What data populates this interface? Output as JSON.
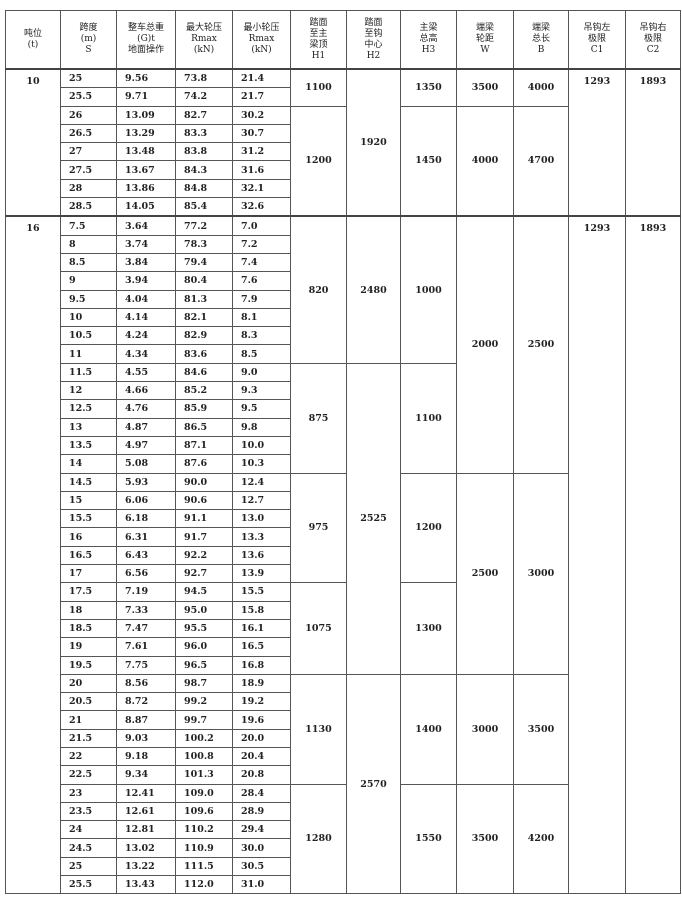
{
  "headers": [
    "吨位\n(t)",
    "跨度\n(m)\nS",
    "整车总重\n(G)t\n地面操作",
    "最大轮压\nRmax\n(kN)",
    "最小轮压\nRmax\n(kN)",
    "踏面\n至主\n梁顶\nH1",
    "踏面\n至钩\n中心\nH2",
    "主梁\n总高\nH3",
    "端梁\n轮距\nW",
    "端梁\n总长\nB",
    "吊钩左\n极限\nC1",
    "吊钩右\n极限\nC2"
  ],
  "groups": [
    {
      "tonnage": "10",
      "c1": "1293",
      "c2": "1893",
      "rows": [
        [
          "25",
          "9.56",
          "73.8",
          "21.4"
        ],
        [
          "25.5",
          "9.71",
          "74.2",
          "21.7"
        ],
        [
          "26",
          "13.09",
          "82.7",
          "30.2"
        ],
        [
          "26.5",
          "13.29",
          "83.3",
          "30.7"
        ],
        [
          "27",
          "13.48",
          "83.8",
          "31.2"
        ],
        [
          "27.5",
          "13.67",
          "84.3",
          "31.6"
        ],
        [
          "28",
          "13.86",
          "84.8",
          "32.1"
        ],
        [
          "28.5",
          "14.05",
          "85.4",
          "32.6"
        ]
      ],
      "h1": [
        {
          "value": "1100",
          "span": 2
        },
        {
          "value": "1200",
          "span": 6
        }
      ],
      "h2": [
        {
          "value": "1920",
          "span": 8
        }
      ],
      "h3": [
        {
          "value": "1350",
          "span": 2
        },
        {
          "value": "1450",
          "span": 6
        }
      ],
      "w": [
        {
          "value": "3500",
          "span": 2
        },
        {
          "value": "4000",
          "span": 6
        }
      ],
      "b": [
        {
          "value": "4000",
          "span": 2
        },
        {
          "value": "4700",
          "span": 6
        }
      ]
    },
    {
      "tonnage": "16",
      "c1": "1293",
      "c2": "1893",
      "rows": [
        [
          "7.5",
          "3.64",
          "77.2",
          "7.0"
        ],
        [
          "8",
          "3.74",
          "78.3",
          "7.2"
        ],
        [
          "8.5",
          "3.84",
          "79.4",
          "7.4"
        ],
        [
          "9",
          "3.94",
          "80.4",
          "7.6"
        ],
        [
          "9.5",
          "4.04",
          "81.3",
          "7.9"
        ],
        [
          "10",
          "4.14",
          "82.1",
          "8.1"
        ],
        [
          "10.5",
          "4.24",
          "82.9",
          "8.3"
        ],
        [
          "11",
          "4.34",
          "83.6",
          "8.5"
        ],
        [
          "11.5",
          "4.55",
          "84.6",
          "9.0"
        ],
        [
          "12",
          "4.66",
          "85.2",
          "9.3"
        ],
        [
          "12.5",
          "4.76",
          "85.9",
          "9.5"
        ],
        [
          "13",
          "4.87",
          "86.5",
          "9.8"
        ],
        [
          "13.5",
          "4.97",
          "87.1",
          "10.0"
        ],
        [
          "14",
          "5.08",
          "87.6",
          "10.3"
        ],
        [
          "14.5",
          "5.93",
          "90.0",
          "12.4"
        ],
        [
          "15",
          "6.06",
          "90.6",
          "12.7"
        ],
        [
          "15.5",
          "6.18",
          "91.1",
          "13.0"
        ],
        [
          "16",
          "6.31",
          "91.7",
          "13.3"
        ],
        [
          "16.5",
          "6.43",
          "92.2",
          "13.6"
        ],
        [
          "17",
          "6.56",
          "92.7",
          "13.9"
        ],
        [
          "17.5",
          "7.19",
          "94.5",
          "15.5"
        ],
        [
          "18",
          "7.33",
          "95.0",
          "15.8"
        ],
        [
          "18.5",
          "7.47",
          "95.5",
          "16.1"
        ],
        [
          "19",
          "7.61",
          "96.0",
          "16.5"
        ],
        [
          "19.5",
          "7.75",
          "96.5",
          "16.8"
        ],
        [
          "20",
          "8.56",
          "98.7",
          "18.9"
        ],
        [
          "20.5",
          "8.72",
          "99.2",
          "19.2"
        ],
        [
          "21",
          "8.87",
          "99.7",
          "19.6"
        ],
        [
          "21.5",
          "9.03",
          "100.2",
          "20.0"
        ],
        [
          "22",
          "9.18",
          "100.8",
          "20.4"
        ],
        [
          "22.5",
          "9.34",
          "101.3",
          "20.8"
        ],
        [
          "23",
          "12.41",
          "109.0",
          "28.4"
        ],
        [
          "23.5",
          "12.61",
          "109.6",
          "28.9"
        ],
        [
          "24",
          "12.81",
          "110.2",
          "29.4"
        ],
        [
          "24.5",
          "13.02",
          "110.9",
          "30.0"
        ],
        [
          "25",
          "13.22",
          "111.5",
          "30.5"
        ],
        [
          "25.5",
          "13.43",
          "112.0",
          "31.0"
        ]
      ],
      "h1": [
        {
          "value": "820",
          "span": 8
        },
        {
          "value": "875",
          "span": 6
        },
        {
          "value": "975",
          "span": 6
        },
        {
          "value": "1075",
          "span": 5
        },
        {
          "value": "1130",
          "span": 6
        },
        {
          "value": "1280",
          "span": 6
        }
      ],
      "h2": [
        {
          "value": "2480",
          "span": 8
        },
        {
          "value": "2525",
          "span": 17
        },
        {
          "value": "2570",
          "span": 12
        }
      ],
      "h3": [
        {
          "value": "1000",
          "span": 8
        },
        {
          "value": "1100",
          "span": 6
        },
        {
          "value": "1200",
          "span": 6
        },
        {
          "value": "1300",
          "span": 5
        },
        {
          "value": "1400",
          "span": 6
        },
        {
          "value": "1550",
          "span": 6
        }
      ],
      "w": [
        {
          "value": "2000",
          "span": 14
        },
        {
          "value": "2500",
          "span": 11
        },
        {
          "value": "3000",
          "span": 6
        },
        {
          "value": "3500",
          "span": 6
        }
      ],
      "b": [
        {
          "value": "2500",
          "span": 14
        },
        {
          "value": "3000",
          "span": 11
        },
        {
          "value": "3500",
          "span": 6
        },
        {
          "value": "4200",
          "span": 6
        }
      ]
    }
  ]
}
